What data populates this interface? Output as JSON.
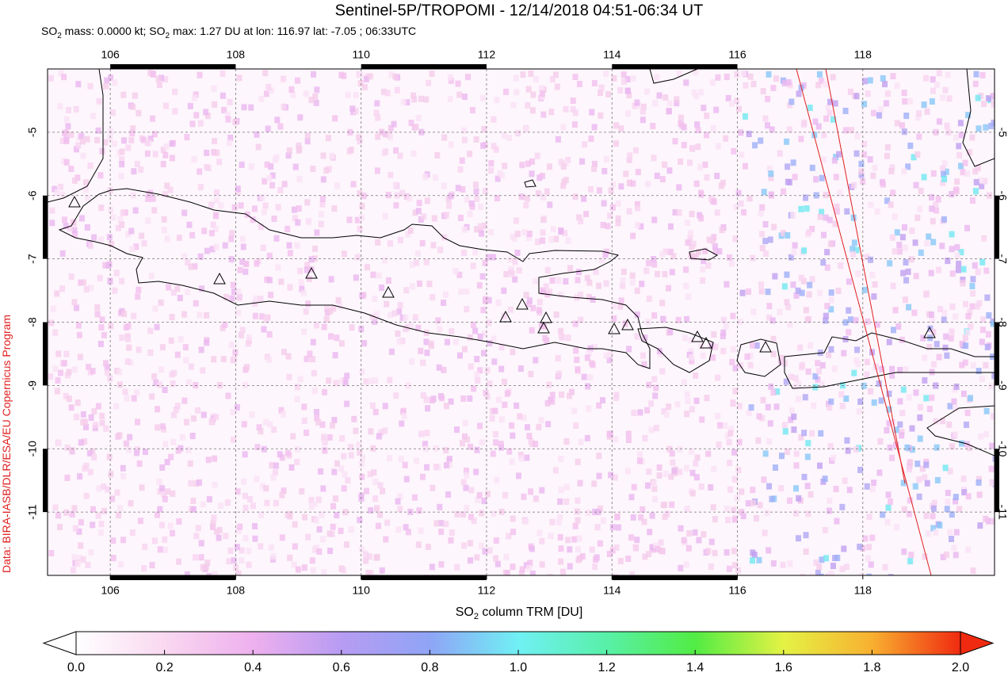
{
  "title": "Sentinel-5P/TROPOMI - 12/14/2018 04:51-06:34 UT",
  "subtitle": [
    "SO",
    "2",
    " mass: 0.0000 kt; SO",
    "2",
    " max: 1.27 DU at lon: 116.97 lat: -7.05 ; 06:33UTC"
  ],
  "credit": "Data: BIRA-IASB/DLR/ESA/EU Copernicus Program",
  "map": {
    "xlim": [
      105,
      120.1
    ],
    "ylim": [
      -12,
      -4
    ],
    "xticks": [
      106,
      108,
      110,
      112,
      114,
      116,
      118
    ],
    "yticks": [
      -5,
      -6,
      -7,
      -8,
      -9,
      -10,
      -11
    ],
    "grid": true
  },
  "colorbar": {
    "label": [
      "SO",
      "2",
      " column TRM [DU]"
    ],
    "range": [
      0,
      2
    ],
    "ticks": [
      {
        "value": 0,
        "label": "0.0"
      },
      {
        "value": 0.2,
        "label": "0.2"
      },
      {
        "value": 0.4,
        "label": "0.4"
      },
      {
        "value": 0.6,
        "label": "0.6"
      },
      {
        "value": 0.8,
        "label": "0.8"
      },
      {
        "value": 1,
        "label": "1.0"
      },
      {
        "value": 1.2,
        "label": "1.2"
      },
      {
        "value": 1.4,
        "label": "1.4"
      },
      {
        "value": 1.6,
        "label": "1.6"
      },
      {
        "value": 1.8,
        "label": "1.8"
      },
      {
        "value": 2,
        "label": "2.0"
      }
    ]
  }
}
